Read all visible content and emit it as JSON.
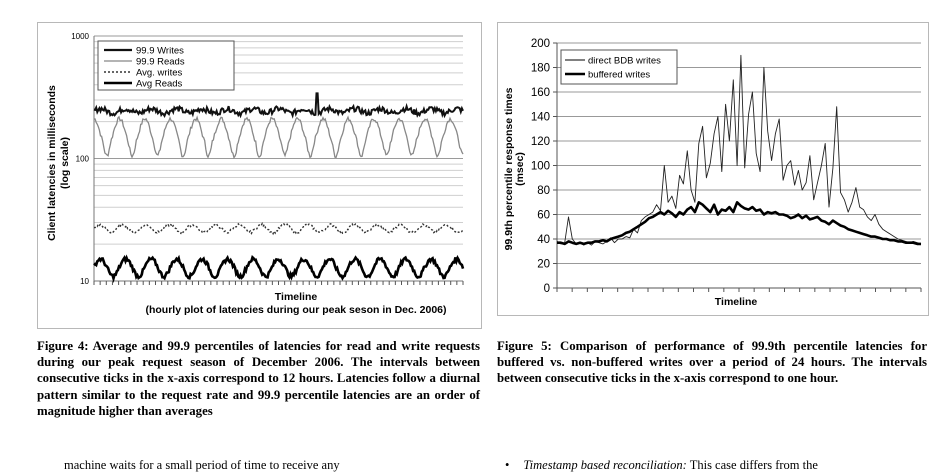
{
  "figure4": {
    "caption": "Figure 4: Average and 99.9 percentiles of latencies for read and write requests during our peak request season of December 2006. The intervals between consecutive ticks in the x-axis correspond to 12 hours. Latencies follow a diurnal pattern similar to the request rate and 99.9 percentile latencies are an order of magnitude higher than averages"
  },
  "figure5": {
    "caption": "Figure 5: Comparison of performance of 99.9th percentile latencies for buffered vs. non-buffered writes over a period of 24 hours. The intervals between consecutive ticks in the x-axis correspond to one hour."
  },
  "body_text": {
    "left_line": "machine waits for a small period of time to receive any",
    "right_bullet": "•",
    "right_term": "Timestamp based reconciliation:",
    "right_rest": " This case differs from the"
  },
  "chart_data": [
    {
      "type": "line",
      "ylabel_line1": "Client latencies in milliseconds",
      "ylabel_line2": "(log scale)",
      "xlabel": "Timeline",
      "xlabel_sub": "(hourly plot of latencies during our peak seson in Dec. 2006)",
      "y_scale": "log",
      "ylim": [
        10,
        1000
      ],
      "yticks": [
        "1000",
        "100",
        "10"
      ],
      "grid": true,
      "legend_position": "top-left",
      "legend": [
        "99.9 Writes",
        "99.9 Reads",
        "Avg. writes",
        "Avg Reads"
      ],
      "x_ticks": 60,
      "series": [
        {
          "name": "99.9 Writes",
          "color": "#111111",
          "style": "solid",
          "approx_level": 250,
          "approx_range": [
            225,
            290
          ],
          "peak": 340
        },
        {
          "name": "99.9 Reads",
          "color": "#888888",
          "style": "solid",
          "approx_level": 160,
          "approx_range": [
            110,
            200
          ]
        },
        {
          "name": "Avg. writes",
          "color": "#333333",
          "style": "dotted",
          "approx_level": 27,
          "approx_range": [
            25,
            30
          ]
        },
        {
          "name": "Avg Reads",
          "color": "#000000",
          "style": "solid",
          "approx_level": 13,
          "approx_range": [
            11,
            16
          ]
        }
      ]
    },
    {
      "type": "line",
      "ylabel_line1": "99.9th percentile response times",
      "ylabel_line2": "(msec)",
      "xlabel": "Timeline",
      "ylim": [
        0,
        200
      ],
      "yticks": [
        0,
        20,
        40,
        60,
        80,
        100,
        120,
        140,
        160,
        180,
        200
      ],
      "grid": true,
      "legend_position": "top-left",
      "legend": [
        "direct BDB writes",
        "buffered writes"
      ],
      "x_ticks": 24,
      "series": [
        {
          "name": "direct BDB writes",
          "color": "#222222",
          "values": [
            38,
            36,
            37,
            58,
            40,
            36,
            37,
            35,
            37,
            35,
            38,
            37,
            36,
            38,
            41,
            37,
            40,
            40,
            42,
            41,
            48,
            45,
            55,
            58,
            60,
            62,
            68,
            63,
            100,
            70,
            75,
            65,
            92,
            85,
            112,
            80,
            70,
            118,
            132,
            90,
            102,
            126,
            140,
            95,
            150,
            120,
            170,
            100,
            190,
            98,
            142,
            160,
            110,
            95,
            180,
            128,
            104,
            126,
            138,
            88,
            100,
            104,
            84,
            96,
            80,
            86,
            108,
            72,
            86,
            100,
            118,
            66,
            98,
            148,
            78,
            72,
            62,
            70,
            82,
            66,
            64,
            58,
            55,
            60,
            52,
            48,
            46,
            44,
            42,
            40,
            39,
            38,
            37,
            38,
            37,
            36
          ]
        },
        {
          "name": "buffered writes",
          "color": "#000000",
          "values": [
            37,
            37,
            36,
            38,
            37,
            36,
            37,
            36,
            37,
            37,
            38,
            38,
            39,
            38,
            40,
            41,
            42,
            43,
            45,
            46,
            48,
            50,
            52,
            54,
            57,
            58,
            60,
            62,
            60,
            63,
            61,
            58,
            62,
            60,
            64,
            66,
            62,
            70,
            68,
            65,
            62,
            68,
            60,
            64,
            63,
            66,
            62,
            70,
            67,
            65,
            64,
            66,
            63,
            64,
            60,
            62,
            61,
            62,
            60,
            60,
            59,
            57,
            58,
            60,
            57,
            59,
            56,
            57,
            58,
            55,
            54,
            52,
            55,
            53,
            51,
            50,
            48,
            47,
            46,
            45,
            44,
            43,
            42,
            42,
            41,
            40,
            40,
            39,
            39,
            38,
            38,
            37,
            37,
            37,
            36,
            36
          ]
        }
      ]
    }
  ]
}
